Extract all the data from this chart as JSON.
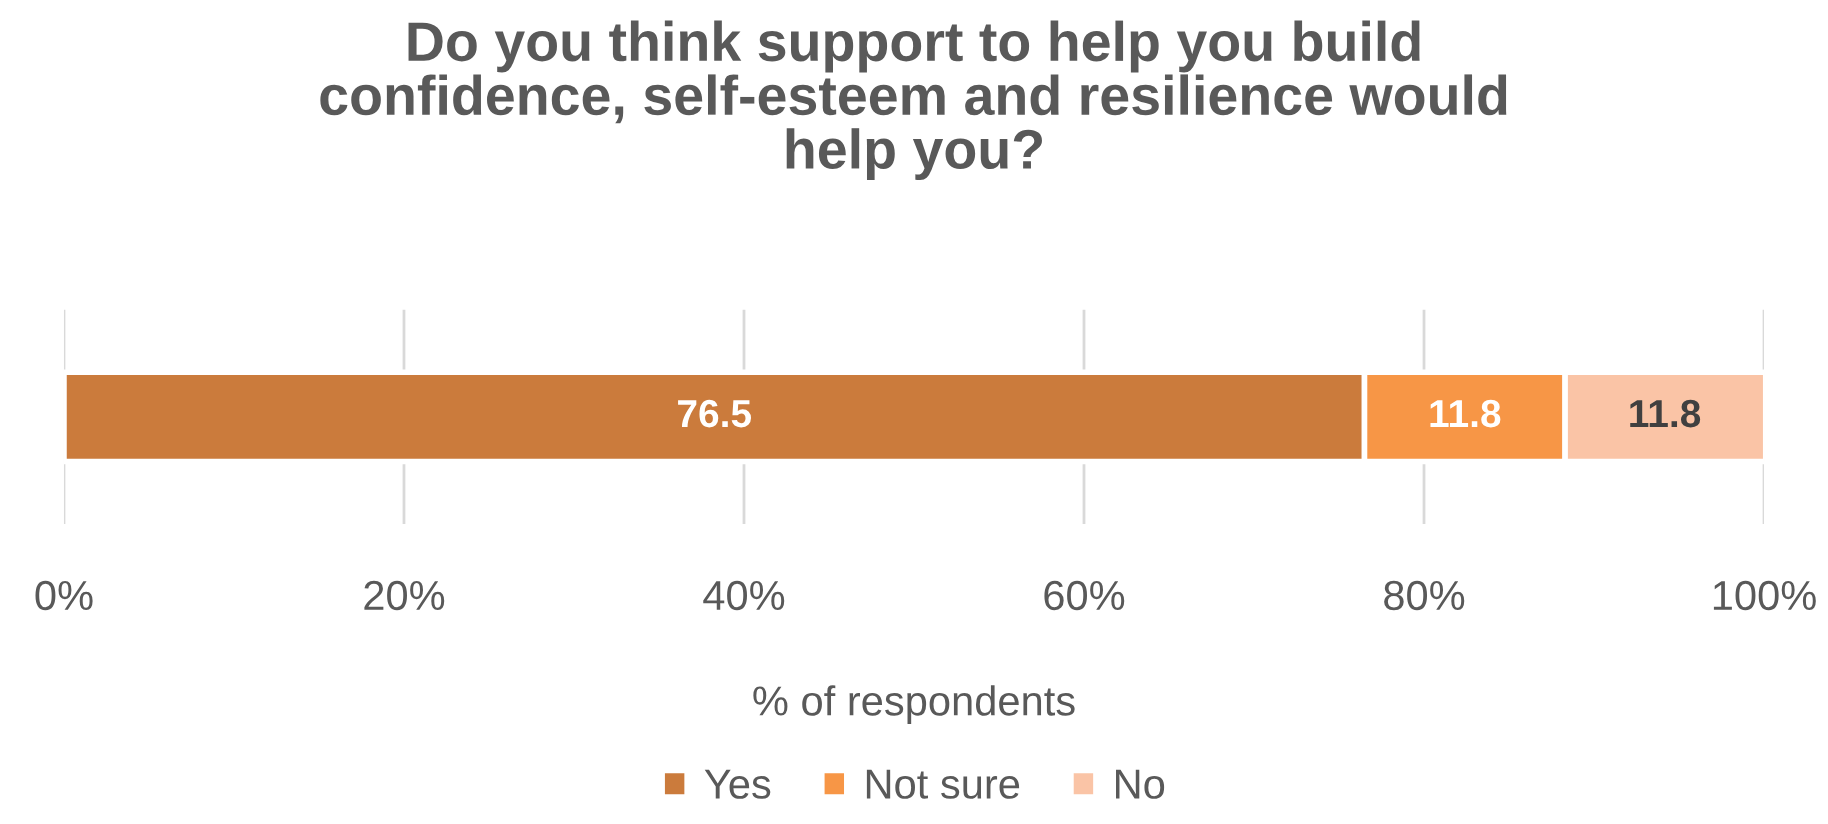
{
  "chart_data": {
    "type": "bar",
    "orientation": "horizontal",
    "stacked": true,
    "title": "Do you think support to help you build\nconfidence, self-esteem and resilience would\nhelp you?",
    "xlabel": "% of respondents",
    "categories": [
      null
    ],
    "series": [
      {
        "name": "Yes",
        "color": "#cb7b3c",
        "values": [
          76.5
        ]
      },
      {
        "name": "Not sure",
        "color": "#f79646",
        "values": [
          11.8
        ]
      },
      {
        "name": "No",
        "color": "#fac4a6",
        "values": [
          11.8
        ]
      }
    ],
    "xlim": [
      0,
      100
    ],
    "xticks": [
      {
        "value": 0,
        "label": "0%"
      },
      {
        "value": 20,
        "label": "20%"
      },
      {
        "value": 40,
        "label": "40%"
      },
      {
        "value": 60,
        "label": "60%"
      },
      {
        "value": 80,
        "label": "80%"
      },
      {
        "value": 100,
        "label": "100%"
      }
    ],
    "grid": "x",
    "legend": "bottom",
    "data_labels": true
  }
}
